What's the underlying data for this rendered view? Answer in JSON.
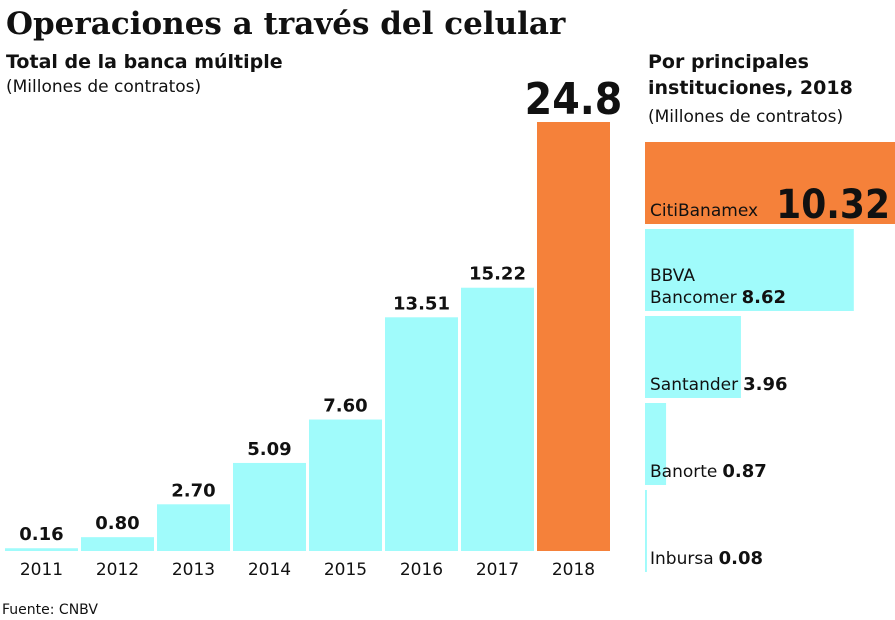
{
  "title": "Operaciones a través del celular",
  "source": "Fuente: CNBV",
  "chart_data": [
    {
      "type": "bar",
      "title": "Total de la banca múltiple",
      "subtitle": "(Millones de contratos)",
      "categories": [
        "2011",
        "2012",
        "2013",
        "2014",
        "2015",
        "2016",
        "2017",
        "2018"
      ],
      "values": [
        0.16,
        0.8,
        2.7,
        5.09,
        7.6,
        13.51,
        15.22,
        24.8
      ],
      "value_labels": [
        "0.16",
        "0.80",
        "2.70",
        "5.09",
        "7.60",
        "13.51",
        "15.22",
        "24.8"
      ],
      "colors": [
        "#a0fbfb",
        "#a0fbfb",
        "#a0fbfb",
        "#a0fbfb",
        "#a0fbfb",
        "#a0fbfb",
        "#a0fbfb",
        "#f5813a"
      ]
    },
    {
      "type": "hbar",
      "title": "Por principales instituciones, 2018",
      "subtitle": "(Millones de contratos)",
      "categories": [
        "CitiBanamex",
        "BBVA Bancomer",
        "Santander",
        "Banorte",
        "Inbursa"
      ],
      "values": [
        10.32,
        8.62,
        3.96,
        0.87,
        0.08
      ],
      "colors": [
        "#f5813a",
        "#a0fbfb",
        "#a0fbfb",
        "#a0fbfb",
        "#a0fbfb"
      ]
    }
  ]
}
